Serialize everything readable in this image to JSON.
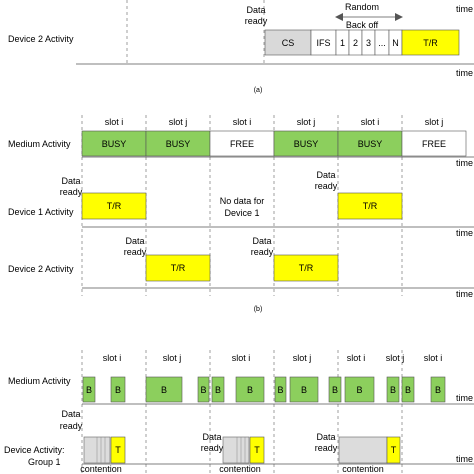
{
  "colors": {
    "busy_green": "#8ccf5d",
    "yellow": "#ffff00",
    "cs_gray": "#d9d9d9",
    "contention_gray": "#dcdcdc",
    "stroke": "#555555",
    "dashed": "#888888"
  },
  "panel_a": {
    "row_label": "Device 2 Activity",
    "data_ready": [
      "Data",
      "ready"
    ],
    "random_backoff": [
      "Random",
      "Back off"
    ],
    "cells": [
      "CS",
      "IFS",
      "1",
      "2",
      "3",
      "...",
      "N",
      "T/R"
    ],
    "time_label": "time",
    "caption": "(a)"
  },
  "panel_b": {
    "slot_labels": [
      "slot i",
      "slot j",
      "slot i",
      "slot j",
      "slot i",
      "slot j"
    ],
    "medium_label": "Medium Activity",
    "medium_cells": [
      "BUSY",
      "BUSY",
      "FREE",
      "BUSY",
      "BUSY",
      "FREE"
    ],
    "device1_label": "Device 1 Activity",
    "device2_label": "Device 2 Activity",
    "data_ready": [
      "Data",
      "ready"
    ],
    "no_data": [
      "No data for",
      "Device 1"
    ],
    "tr_label": "T/R",
    "time_label": "time",
    "caption": "(b)"
  },
  "panel_c": {
    "slot_labels": [
      "slot i",
      "slot j",
      "slot i",
      "slot j",
      "slot i",
      "slot j",
      "slot i"
    ],
    "medium_label": "Medium Activity",
    "b_label": "B",
    "data_ready": [
      "Data",
      "ready"
    ],
    "group_label": [
      "Device Activity:",
      "Group 1"
    ],
    "t_label": "T",
    "contention_label": "contention",
    "time_label": "time"
  }
}
